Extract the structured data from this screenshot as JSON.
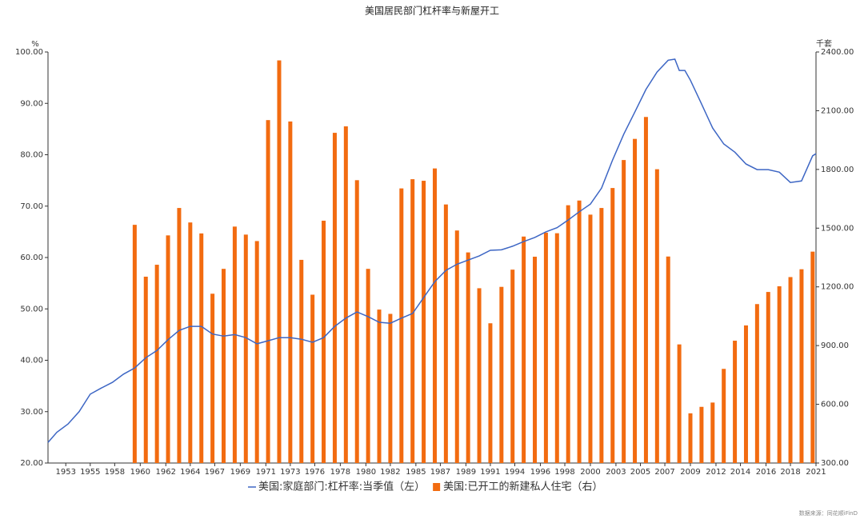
{
  "chart_data": {
    "type": "combo",
    "title": "美国居民部门杠杆率与新屋开工",
    "y_label": "%",
    "y2_label": "千套",
    "source": "数据来源：同花顺iFinD",
    "xlim": [
      1951.2,
      2020.3
    ],
    "xticks": [
      {
        "value": 1952.8,
        "label": "1953"
      },
      {
        "value": 1955.0,
        "label": "1955"
      },
      {
        "value": 1957.2,
        "label": "1958"
      },
      {
        "value": 1959.5,
        "label": "1960"
      },
      {
        "value": 1961.8,
        "label": "1962"
      },
      {
        "value": 1964.0,
        "label": "1964"
      },
      {
        "value": 1966.2,
        "label": "1967"
      },
      {
        "value": 1968.5,
        "label": "1969"
      },
      {
        "value": 1970.8,
        "label": "1971"
      },
      {
        "value": 1973.0,
        "label": "1973"
      },
      {
        "value": 1975.2,
        "label": "1976"
      },
      {
        "value": 1977.5,
        "label": "1978"
      },
      {
        "value": 1979.8,
        "label": "1980"
      },
      {
        "value": 1982.0,
        "label": "1982"
      },
      {
        "value": 1984.3,
        "label": "1985"
      },
      {
        "value": 1986.5,
        "label": "1987"
      },
      {
        "value": 1988.8,
        "label": "1989"
      },
      {
        "value": 1991.0,
        "label": "1991"
      },
      {
        "value": 1993.2,
        "label": "1994"
      },
      {
        "value": 1995.5,
        "label": "1996"
      },
      {
        "value": 1997.7,
        "label": "1998"
      },
      {
        "value": 2000.0,
        "label": "2000"
      },
      {
        "value": 2002.3,
        "label": "2003"
      },
      {
        "value": 2004.5,
        "label": "2005"
      },
      {
        "value": 2006.7,
        "label": "2007"
      },
      {
        "value": 2009.0,
        "label": "2009"
      },
      {
        "value": 2011.3,
        "label": "2012"
      },
      {
        "value": 2013.5,
        "label": "2014"
      },
      {
        "value": 2015.8,
        "label": "2016"
      },
      {
        "value": 2018.0,
        "label": "2018"
      },
      {
        "value": 2020.3,
        "label": "2021"
      }
    ],
    "ylim": [
      20,
      100
    ],
    "yticks": [
      {
        "value": 20,
        "label": "20.00"
      },
      {
        "value": 30,
        "label": "30.00"
      },
      {
        "value": 40,
        "label": "40.00"
      },
      {
        "value": 50,
        "label": "50.00"
      },
      {
        "value": 60,
        "label": "60.00"
      },
      {
        "value": 70,
        "label": "70.00"
      },
      {
        "value": 80,
        "label": "80.00"
      },
      {
        "value": 90,
        "label": "90.00"
      },
      {
        "value": 100,
        "label": "100.00"
      }
    ],
    "y2lim": [
      300,
      2400
    ],
    "y2ticks": [
      {
        "value": 300,
        "label": "300.00"
      },
      {
        "value": 600,
        "label": "600.00"
      },
      {
        "value": 900,
        "label": "900.00"
      },
      {
        "value": 1200,
        "label": "1200.00"
      },
      {
        "value": 1500,
        "label": "1500.00"
      },
      {
        "value": 1800,
        "label": "1800.00"
      },
      {
        "value": 2100,
        "label": "2100.00"
      },
      {
        "value": 2400,
        "label": "2400.00"
      }
    ],
    "series": [
      {
        "name": "美国:家庭部门:杠杆率:当季值（左）",
        "type": "line",
        "color": "#3d66c4",
        "x": [
          1951.2,
          1952,
          1953,
          1954,
          1955,
          1956,
          1957,
          1958,
          1959,
          1960,
          1961,
          1962,
          1963,
          1964,
          1965,
          1966,
          1967,
          1968,
          1969,
          1970,
          1971,
          1972,
          1973,
          1974,
          1975,
          1976,
          1977,
          1978,
          1979,
          1980,
          1981,
          1982,
          1983,
          1984,
          1985,
          1986,
          1987,
          1988,
          1989,
          1990,
          1991,
          1992,
          1993,
          1994,
          1995,
          1996,
          1997,
          1998,
          1999,
          2000,
          2001,
          2002,
          2003,
          2004,
          2005,
          2006,
          2007,
          2007.6,
          2008,
          2008.5,
          2009,
          2010,
          2011,
          2012,
          2013,
          2014,
          2015,
          2016,
          2017,
          2018,
          2019,
          2020,
          2020.3
        ],
        "values": [
          24.0,
          26.0,
          27.6,
          30.0,
          33.4,
          34.6,
          35.7,
          37.3,
          38.5,
          40.5,
          41.9,
          44.0,
          45.8,
          46.6,
          46.6,
          45.1,
          44.7,
          45.0,
          44.4,
          43.2,
          43.8,
          44.4,
          44.4,
          44.1,
          43.5,
          44.4,
          46.6,
          48.2,
          49.4,
          48.5,
          47.4,
          47.2,
          48.2,
          49.1,
          52.2,
          55.3,
          57.5,
          58.7,
          59.5,
          60.3,
          61.4,
          61.5,
          62.2,
          63.1,
          63.9,
          65.0,
          65.8,
          67.3,
          68.9,
          70.4,
          73.5,
          79.0,
          84.0,
          88.3,
          92.7,
          96.1,
          98.4,
          98.6,
          96.4,
          96.4,
          94.5,
          89.9,
          85.2,
          82.1,
          80.5,
          78.2,
          77.1,
          77.1,
          76.6,
          74.6,
          74.9,
          79.8,
          80.2
        ]
      },
      {
        "name": "美国:已开工的新建私人住宅（右）",
        "type": "bar",
        "axis": "y2",
        "color": "#f26b10",
        "x": [
          1959,
          1960,
          1961,
          1962,
          1963,
          1964,
          1965,
          1966,
          1967,
          1968,
          1969,
          1970,
          1971,
          1972,
          1973,
          1974,
          1975,
          1976,
          1977,
          1978,
          1979,
          1980,
          1981,
          1982,
          1983,
          1984,
          1985,
          1986,
          1987,
          1988,
          1989,
          1990,
          1991,
          1992,
          1993,
          1994,
          1995,
          1996,
          1997,
          1998,
          1999,
          2000,
          2001,
          2002,
          2003,
          2004,
          2005,
          2006,
          2007,
          2008,
          2009,
          2010,
          2011,
          2012,
          2013,
          2014,
          2015,
          2016,
          2017,
          2018,
          2019,
          2020
        ],
        "values": [
          1517,
          1252,
          1313,
          1463,
          1603,
          1529,
          1473,
          1165,
          1292,
          1508,
          1467,
          1434,
          2052,
          2357,
          2045,
          1338,
          1160,
          1538,
          1987,
          2020,
          1745,
          1292,
          1084,
          1062,
          1703,
          1750,
          1742,
          1805,
          1621,
          1488,
          1376,
          1193,
          1014,
          1200,
          1288,
          1457,
          1354,
          1477,
          1474,
          1617,
          1641,
          1569,
          1603,
          1705,
          1848,
          1956,
          2068,
          1801,
          1355,
          906,
          554,
          587,
          609,
          781,
          925,
          1003,
          1112,
          1174,
          1203,
          1250,
          1290,
          1380
        ]
      }
    ]
  }
}
